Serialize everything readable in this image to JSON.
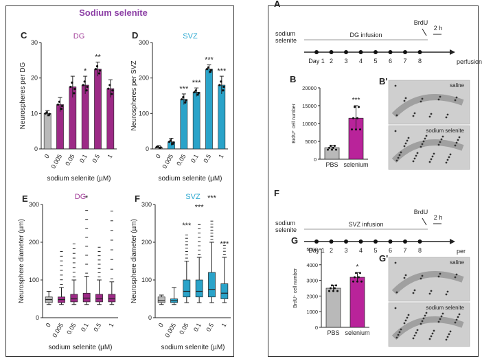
{
  "left_title": "Sodium selenite",
  "colors": {
    "gray": "#b9b9b9",
    "magenta": "#9c2a86",
    "cyan": "#2aa3c9",
    "dg_text": "#a03a97",
    "svz_text": "#2ba8d0",
    "title": "#8c3fa5",
    "selenium": "#b9239a"
  },
  "panels": {
    "C": {
      "letter": "C",
      "region": "DG",
      "ylabel": "Neurospheres per DG",
      "xlabel": "sodium selenite (µM)",
      "yticks": [
        "0",
        "10",
        "20",
        "30"
      ],
      "sig": [
        "",
        "",
        "",
        "*",
        "**",
        ""
      ]
    },
    "D": {
      "letter": "D",
      "region": "SVZ",
      "ylabel": "Neurospheres per SVZ",
      "xlabel": "sodium selenite (µM)",
      "yticks": [
        "0",
        "100",
        "200",
        "300"
      ],
      "sig": [
        "",
        "",
        "***",
        "***",
        "***",
        "***"
      ]
    },
    "E": {
      "letter": "E",
      "region": "DG",
      "ylabel": "Neurosphere diameter (µm)",
      "xlabel": "sodium selenite (µM)",
      "yticks": [
        "0",
        "100",
        "200",
        "300"
      ],
      "sig": [
        "",
        "",
        "",
        "*",
        "",
        ""
      ]
    },
    "F": {
      "letter": "F",
      "region": "SVZ",
      "ylabel": "Neurosphere diameter (µm)",
      "xlabel": "sodium selenite (µM)",
      "yticks": [
        "0",
        "100",
        "200",
        "300"
      ],
      "sig": [
        "",
        "",
        "***",
        "***",
        "***",
        "***"
      ]
    },
    "A": {
      "letter": "A",
      "left_label": "sodium\nselenite",
      "infusion": "DG infusion",
      "brdu": "BrdU",
      "hours": "2 h",
      "days": [
        "Day 1",
        "2",
        "3",
        "4",
        "5",
        "6",
        "7",
        "8"
      ],
      "end": "perfusion"
    },
    "Fr": {
      "letter": "F",
      "left_label": "sodium\nselenite",
      "infusion": "SVZ infusion",
      "brdu": "BrdU",
      "hours": "2 h",
      "days": [
        "Day 1",
        "2",
        "3",
        "4",
        "5",
        "6",
        "7",
        "8"
      ],
      "end": "per"
    },
    "B": {
      "letter": "B",
      "ylabel": "BrdU⁺ cell number",
      "yticks": [
        "0",
        "5000",
        "10000",
        "15000",
        "20000"
      ],
      "cats": [
        "PBS",
        "selenium"
      ],
      "sig": "***"
    },
    "G": {
      "letter": "G",
      "ylabel": "BrdU⁺ cell number",
      "yticks": [
        "0",
        "1000",
        "2000",
        "3000",
        "4000",
        "5000"
      ],
      "cats": [
        "PBS",
        "selenium"
      ],
      "sig": "*"
    },
    "Bp": {
      "letter": "B'",
      "top_label": "saline",
      "bottom_label": "sodium selenite"
    },
    "Gp": {
      "letter": "G'",
      "top_label": "saline",
      "bottom_label": "sodium selenite"
    }
  },
  "x_categories": [
    "0",
    "0.005",
    "0.05",
    "0.1",
    "0.5",
    "1"
  ],
  "chart_data": [
    {
      "type": "bar",
      "panel": "C",
      "categories": [
        "0",
        "0.005",
        "0.05",
        "0.1",
        "0.5",
        "1"
      ],
      "values": [
        10,
        12.5,
        17.5,
        18,
        22.5,
        17
      ],
      "errors": [
        0.8,
        2,
        3,
        2.5,
        2,
        2.5
      ],
      "ylim": [
        0,
        30
      ],
      "title": "DG",
      "xlabel": "sodium selenite (µM)",
      "ylabel": "Neurospheres per DG"
    },
    {
      "type": "bar",
      "panel": "D",
      "categories": [
        "0",
        "0.005",
        "0.05",
        "0.1",
        "0.5",
        "1"
      ],
      "values": [
        5,
        20,
        140,
        160,
        225,
        180
      ],
      "errors": [
        4,
        10,
        15,
        12,
        12,
        25
      ],
      "ylim": [
        0,
        300
      ],
      "title": "SVZ",
      "xlabel": "sodium selenite (µM)",
      "ylabel": "Neurospheres per SVZ"
    },
    {
      "type": "box",
      "panel": "E",
      "categories": [
        "0",
        "0.005",
        "0.05",
        "0.1",
        "0.5",
        "1"
      ],
      "q1": [
        40,
        40,
        42,
        42,
        42,
        42
      ],
      "median": [
        48,
        48,
        50,
        52,
        50,
        50
      ],
      "q3": [
        55,
        55,
        62,
        65,
        62,
        62
      ],
      "whisker_low": [
        35,
        35,
        35,
        35,
        35,
        35
      ],
      "whisker_high": [
        70,
        80,
        100,
        110,
        100,
        95
      ],
      "max_outlier": [
        70,
        180,
        200,
        300,
        190,
        300
      ],
      "ylim": [
        0,
        300
      ],
      "title": "DG",
      "xlabel": "sodium selenite (µM)",
      "ylabel": "Neurosphere diameter (µm)"
    },
    {
      "type": "box",
      "panel": "F",
      "categories": [
        "0",
        "0.005",
        "0.05",
        "0.1",
        "0.5",
        "1"
      ],
      "q1": [
        40,
        40,
        55,
        55,
        55,
        50
      ],
      "median": [
        45,
        45,
        70,
        70,
        75,
        65
      ],
      "q3": [
        55,
        50,
        100,
        100,
        120,
        90
      ],
      "whisker_low": [
        35,
        35,
        40,
        40,
        40,
        40
      ],
      "whisker_high": [
        60,
        80,
        150,
        160,
        200,
        160
      ],
      "max_outlier": [
        60,
        80,
        220,
        250,
        260,
        200
      ],
      "ylim": [
        0,
        300
      ],
      "title": "SVZ",
      "xlabel": "sodium selenite (µM)",
      "ylabel": "Neurosphere diameter (µm)"
    },
    {
      "type": "bar",
      "panel": "B",
      "categories": [
        "PBS",
        "selenium"
      ],
      "values": [
        3200,
        11500
      ],
      "errors": [
        600,
        3500
      ],
      "ylim": [
        0,
        20000
      ],
      "ylabel": "BrdU⁺ cell number"
    },
    {
      "type": "bar",
      "panel": "G",
      "categories": [
        "PBS",
        "selenium"
      ],
      "values": [
        2500,
        3200
      ],
      "errors": [
        200,
        300
      ],
      "ylim": [
        0,
        5000
      ],
      "ylabel": "BrdU⁺ cell number"
    }
  ]
}
